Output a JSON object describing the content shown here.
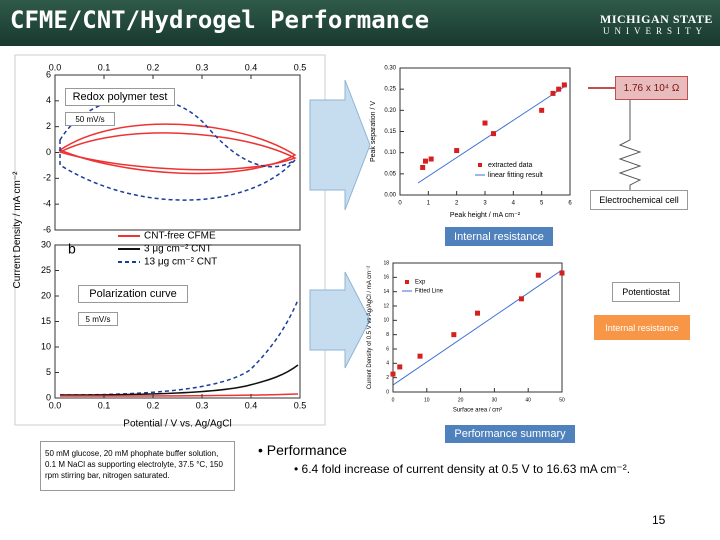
{
  "header": {
    "title": "CFME/CNT/Hydrogel Performance",
    "logo_line1": "MICHIGAN STATE",
    "logo_line2": "UNIVERSITY"
  },
  "cv_plot": {
    "xlim": [
      0,
      0.5
    ],
    "xticks": [
      {
        "value": 0,
        "label": "0.0"
      },
      {
        "value": 0.1,
        "label": "0.1"
      },
      {
        "value": 0.2,
        "label": "0.2"
      },
      {
        "value": 0.3,
        "label": "0.3"
      },
      {
        "value": 0.4,
        "label": "0.4"
      },
      {
        "value": 0.5,
        "label": "0.5"
      }
    ],
    "ylim": [
      -6,
      6
    ],
    "yticks": [
      6,
      4,
      2,
      0,
      -2,
      -4,
      -6
    ],
    "ylabel": "Current Density / mA cm⁻²",
    "legend": [
      "CNT-free CFME",
      "3 μg cm⁻² CNT",
      "13 μg cm⁻² CNT"
    ],
    "panel_label": "b"
  },
  "polarization_plot": {
    "xlim": [
      0,
      0.5
    ],
    "xticks": [
      {
        "value": 0,
        "label": "0.0"
      },
      {
        "value": 0.1,
        "label": "0.1"
      },
      {
        "value": 0.2,
        "label": "0.2"
      },
      {
        "value": 0.3,
        "label": "0.3"
      },
      {
        "value": 0.4,
        "label": "0.4"
      },
      {
        "value": 0.5,
        "label": "0.5"
      }
    ],
    "ylim": [
      0,
      30
    ],
    "yticks": [
      30,
      25,
      20,
      15,
      10,
      5,
      0
    ],
    "xlabel": "Potential / V vs. Ag/AgCl"
  },
  "peak_plot": {
    "xlim": [
      0,
      6
    ],
    "xticks": [
      0,
      1,
      2,
      3,
      4,
      5,
      6
    ],
    "ylim": [
      0,
      0.3
    ],
    "yticks": [
      {
        "value": 0,
        "label": "0.00"
      },
      {
        "value": 0.05,
        "label": "0.05"
      },
      {
        "value": 0.1,
        "label": "0.10"
      },
      {
        "value": 0.15,
        "label": "0.15"
      },
      {
        "value": 0.2,
        "label": "0.20"
      },
      {
        "value": 0.25,
        "label": "0.25"
      },
      {
        "value": 0.3,
        "label": "0.30"
      }
    ],
    "xlabel": "Peak height / mA cm⁻²",
    "ylabel": "Peak separation / V",
    "legend": [
      "extracted data",
      "linear fitting result"
    ],
    "points": {
      "x": [
        0.8,
        0.9,
        1.1,
        2,
        3,
        3.3,
        5,
        5.4,
        5.6,
        5.8
      ],
      "y": [
        0.065,
        0.08,
        0.085,
        0.105,
        0.17,
        0.145,
        0.2,
        0.24,
        0.25,
        0.26
      ]
    }
  },
  "area_plot": {
    "xlim": [
      0,
      50
    ],
    "xticks": [
      0,
      10,
      20,
      30,
      40,
      50
    ],
    "ylim": [
      0,
      18
    ],
    "yticks": [
      0,
      2,
      4,
      6,
      8,
      10,
      12,
      14,
      16,
      18
    ],
    "xlabel": "Surface area / cm²",
    "ylabel": "Current Density of 0.5 V vs Ag/AgCl / mA cm⁻²",
    "legend": [
      "Exp",
      "Fitted Line"
    ],
    "points": {
      "x": [
        0,
        2,
        8,
        18,
        25,
        38,
        43,
        50
      ],
      "y": [
        2.5,
        3.5,
        5,
        8,
        11,
        13,
        16.3,
        16.6
      ]
    }
  },
  "callouts": {
    "redox": "Redox polymer test",
    "scan_rate_1": "50 mV/s",
    "polarization": "Polarization curve",
    "scan_rate_2": "5 mV/s",
    "resistance_value": "1.76 x 10⁴ Ω",
    "cell": "Electrochemical cell",
    "internal_resistance_1": "Internal resistance",
    "potentiostat": "Potentiostat",
    "internal_resistance_2": "Internal resistance",
    "summary": "Performance summary"
  },
  "note": "50 mM glucose, 20 mM phophate buffer solution, 0.1 M NaCl as supporting electrolyte, 37.5 °C, 150 rpm stirring bar, nitrogen saturated.",
  "bullets": {
    "main": "Performance",
    "sub": "6.4 fold increase of current density at 0.5 V to 16.63 mA cm⁻²."
  },
  "page_number": "15"
}
